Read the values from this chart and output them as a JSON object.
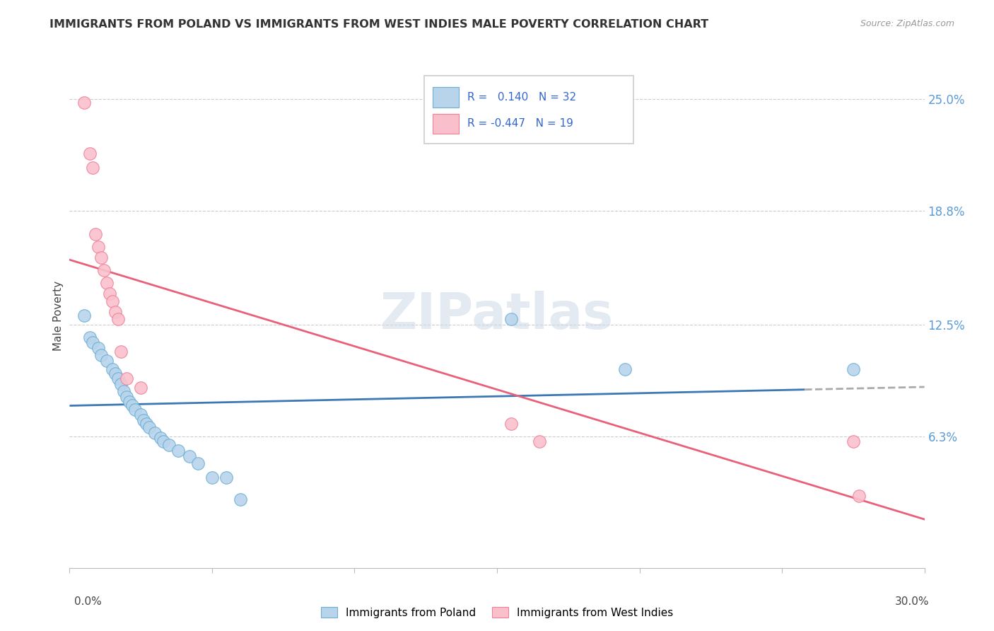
{
  "title": "IMMIGRANTS FROM POLAND VS IMMIGRANTS FROM WEST INDIES MALE POVERTY CORRELATION CHART",
  "source": "Source: ZipAtlas.com",
  "ylabel": "Male Poverty",
  "ytick_labels": [
    "25.0%",
    "18.8%",
    "12.5%",
    "6.3%"
  ],
  "ytick_values": [
    0.25,
    0.188,
    0.125,
    0.063
  ],
  "r_poland": 0.14,
  "n_poland": 32,
  "r_west_indies": -0.447,
  "n_west_indies": 19,
  "xmin": 0.0,
  "xmax": 0.3,
  "ymin": -0.01,
  "ymax": 0.27,
  "color_poland_fill": "#b8d4eb",
  "color_poland_edge": "#6aaed6",
  "color_wi_fill": "#f9c0cc",
  "color_wi_edge": "#f08098",
  "color_poland_line": "#3d78b5",
  "color_wi_line": "#e8607a",
  "color_dashed": "#aaaaaa",
  "poland_x": [
    0.005,
    0.007,
    0.008,
    0.01,
    0.011,
    0.013,
    0.015,
    0.016,
    0.017,
    0.018,
    0.019,
    0.02,
    0.021,
    0.022,
    0.023,
    0.025,
    0.026,
    0.027,
    0.028,
    0.03,
    0.032,
    0.033,
    0.035,
    0.038,
    0.042,
    0.045,
    0.05,
    0.055,
    0.06,
    0.155,
    0.195,
    0.275
  ],
  "poland_y": [
    0.13,
    0.118,
    0.115,
    0.112,
    0.108,
    0.105,
    0.1,
    0.098,
    0.095,
    0.092,
    0.088,
    0.085,
    0.082,
    0.08,
    0.078,
    0.075,
    0.072,
    0.07,
    0.068,
    0.065,
    0.062,
    0.06,
    0.058,
    0.055,
    0.052,
    0.048,
    0.04,
    0.04,
    0.028,
    0.128,
    0.1,
    0.1
  ],
  "wi_x": [
    0.005,
    0.007,
    0.008,
    0.009,
    0.01,
    0.011,
    0.012,
    0.013,
    0.014,
    0.015,
    0.016,
    0.017,
    0.018,
    0.02,
    0.025,
    0.155,
    0.165,
    0.275,
    0.277
  ],
  "wi_y": [
    0.248,
    0.22,
    0.212,
    0.175,
    0.168,
    0.162,
    0.155,
    0.148,
    0.142,
    0.138,
    0.132,
    0.128,
    0.11,
    0.095,
    0.09,
    0.07,
    0.06,
    0.06,
    0.03
  ]
}
